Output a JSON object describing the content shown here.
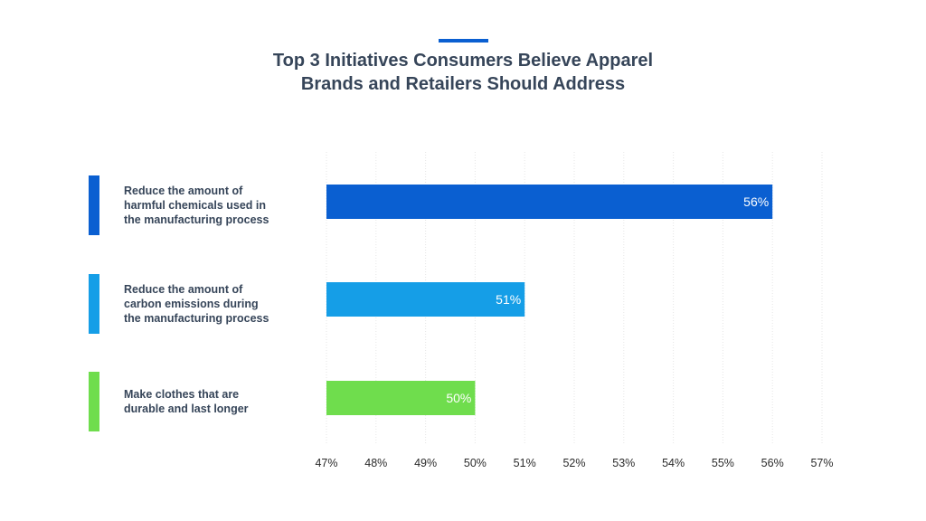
{
  "title_lines": [
    "Top 3 Initiatives Consumers Believe Apparel",
    "Brands and Retailers Should Address"
  ],
  "colors": {
    "accent": "#0a5fd1",
    "title": "#364559",
    "series": [
      "#0a5fd1",
      "#159ee7",
      "#6fdd4d"
    ]
  },
  "chart_data": {
    "type": "bar",
    "orientation": "horizontal",
    "title": "Top 3 Initiatives Consumers Believe Apparel Brands and Retailers Should Address",
    "categories": [
      [
        "Reduce the amount of",
        "harmful chemicals used in",
        "the manufacturing process"
      ],
      [
        "Reduce the amount of",
        "carbon emissions during",
        "the manufacturing process"
      ],
      [
        "Make clothes that are",
        "durable and last longer"
      ]
    ],
    "values": [
      56,
      51,
      50
    ],
    "value_labels": [
      "56%",
      "51%",
      "50%"
    ],
    "xlim": [
      47,
      57
    ],
    "ticks": [
      "47%",
      "48%",
      "49%",
      "50%",
      "51%",
      "52%",
      "53%",
      "54%",
      "55%",
      "56%",
      "57%"
    ],
    "grid": true,
    "legend": "none"
  }
}
